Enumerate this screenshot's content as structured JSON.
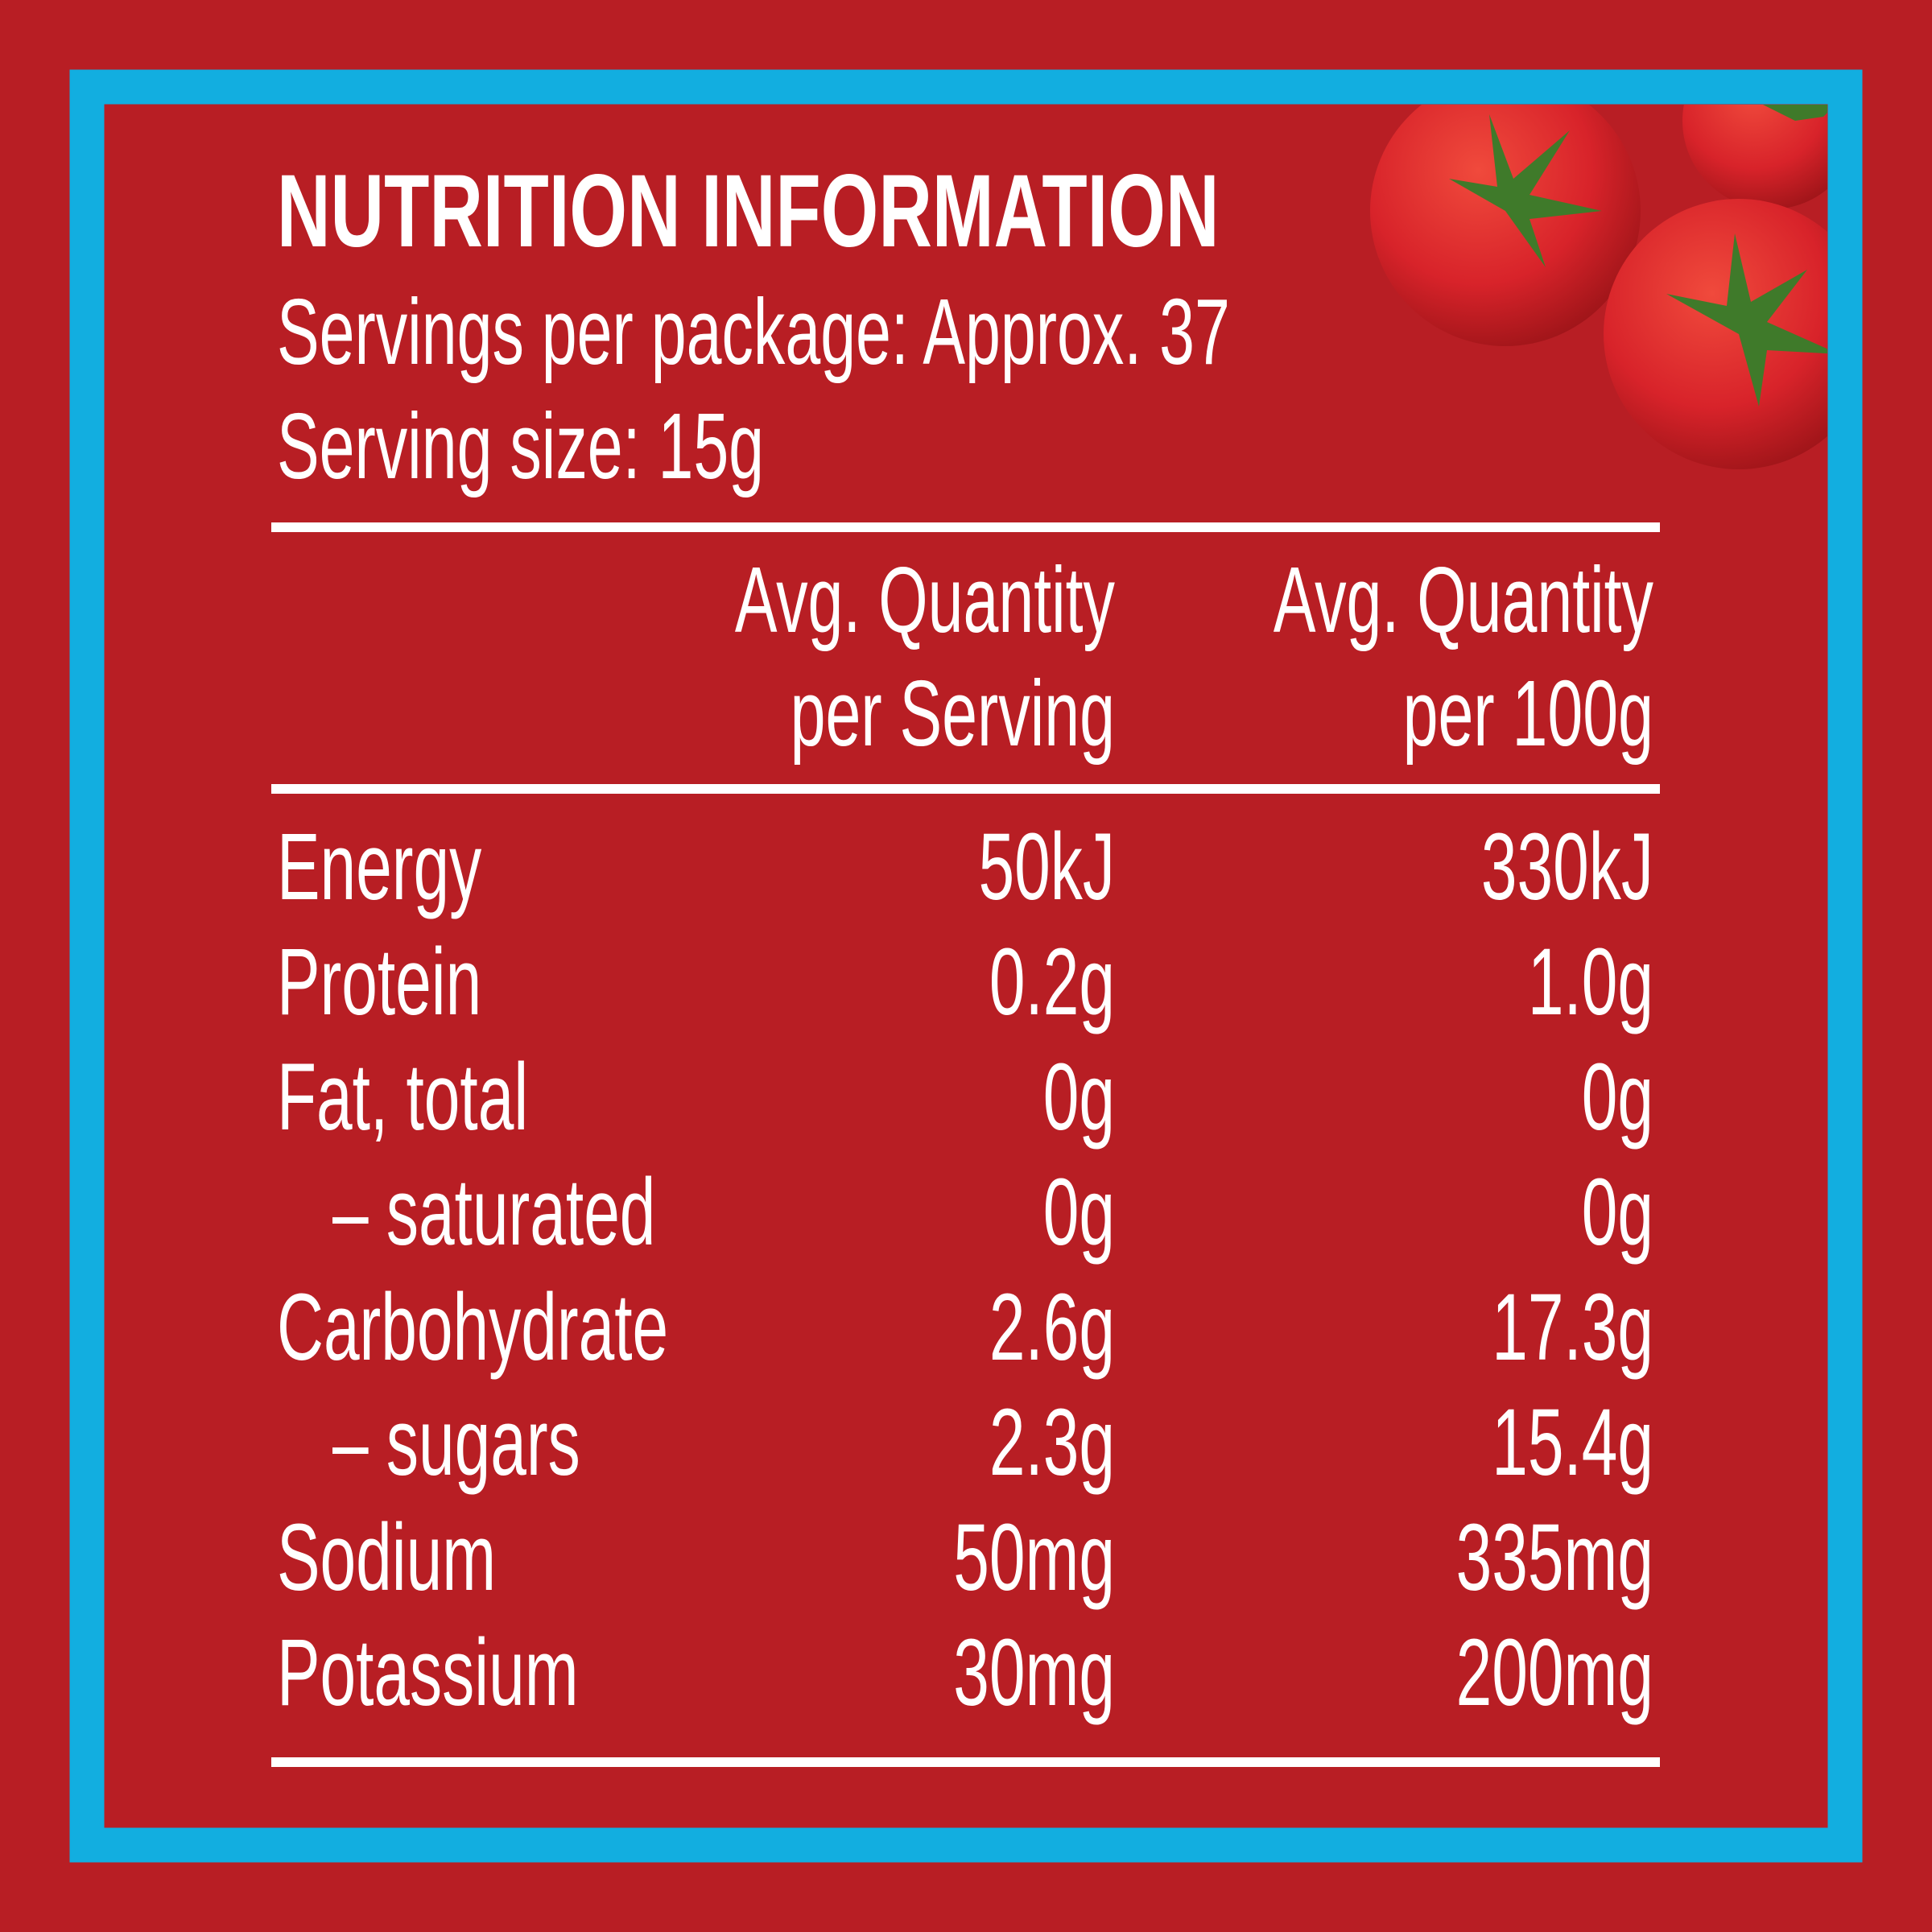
{
  "header": {
    "title": "NUTRITION INFORMATION",
    "servings": "Servings per package: Approx. 37",
    "serving_size": "Serving size: 15g"
  },
  "table": {
    "columns": [
      [
        "Avg. Quantity",
        "per Serving"
      ],
      [
        "Avg. Quantity",
        "per 100g"
      ]
    ],
    "rows": [
      [
        "Energy",
        "50kJ",
        "330kJ"
      ],
      [
        "Protein",
        "0.2g",
        "1.0g"
      ],
      [
        "Fat, total",
        "0g",
        "0g"
      ],
      [
        "– saturated",
        "0g",
        "0g"
      ],
      [
        "Carbohydrate",
        "2.6g",
        "17.3g"
      ],
      [
        "– sugars",
        "2.3g",
        "15.4g"
      ],
      [
        "Sodium",
        "50mg",
        "335mg"
      ],
      [
        "Potassium",
        "30mg",
        "200mg"
      ]
    ]
  }
}
